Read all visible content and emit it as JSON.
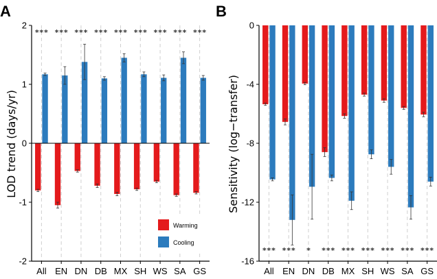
{
  "chart_data": [
    {
      "panel": "A",
      "type": "bar",
      "title": "",
      "xlabel": "",
      "ylabel": "LOD trend (days/yr)",
      "ylim": [
        -2,
        2
      ],
      "yticks": [
        "2",
        "1",
        "0",
        "-1",
        "-2"
      ],
      "categories": [
        "All",
        "EN",
        "DN",
        "DB",
        "MX",
        "SH",
        "WS",
        "SA",
        "GS"
      ],
      "series": [
        {
          "name": "Warming",
          "color": "#e41a1c",
          "values": [
            -0.8,
            -1.05,
            -0.47,
            -0.72,
            -0.86,
            -0.78,
            -0.65,
            -0.88,
            -0.84
          ],
          "errors": [
            0.02,
            0.05,
            0.02,
            0.03,
            0.03,
            0.02,
            0.02,
            0.02,
            0.02
          ]
        },
        {
          "name": "Cooling",
          "color": "#2c7bbd",
          "values": [
            1.17,
            1.15,
            1.38,
            1.1,
            1.45,
            1.17,
            1.11,
            1.45,
            1.11
          ],
          "errors": [
            0.02,
            0.15,
            0.3,
            0.03,
            0.07,
            0.04,
            0.05,
            0.1,
            0.04
          ]
        }
      ],
      "annotations": [
        "***",
        "***",
        "***",
        "***",
        "***",
        "***",
        "***",
        "***",
        "***"
      ],
      "legend": [
        "Warming",
        "Cooling"
      ],
      "legend_position": "bottom-right",
      "grid": "vertical dashed"
    },
    {
      "panel": "B",
      "type": "bar",
      "title": "",
      "xlabel": "",
      "ylabel": "Sensitivity (log−transfer)",
      "ylim": [
        -16,
        0
      ],
      "yticks": [
        "0",
        "-4",
        "-8",
        "-12",
        "-16"
      ],
      "categories": [
        "All",
        "EN",
        "DN",
        "DB",
        "MX",
        "SH",
        "WS",
        "SA",
        "GS"
      ],
      "series": [
        {
          "name": "Warming",
          "color": "#e41a1c",
          "values": [
            -5.35,
            -6.55,
            -3.95,
            -8.6,
            -6.15,
            -4.7,
            -5.1,
            -5.6,
            -6.05
          ],
          "errors": [
            0.08,
            0.2,
            0.08,
            0.3,
            0.15,
            0.1,
            0.12,
            0.1,
            0.15
          ]
        },
        {
          "name": "Cooling",
          "color": "#2c7bbd",
          "values": [
            -10.45,
            -13.2,
            -10.95,
            -10.35,
            -11.9,
            -8.75,
            -9.6,
            -12.35,
            -10.6
          ],
          "errors": [
            0.1,
            1.7,
            2.2,
            0.2,
            0.6,
            0.3,
            0.5,
            0.8,
            0.3
          ]
        }
      ],
      "annotations": [
        "***",
        "***",
        "*",
        "***",
        "***",
        "***",
        "***",
        "***",
        "***"
      ],
      "grid": "vertical dashed"
    }
  ]
}
